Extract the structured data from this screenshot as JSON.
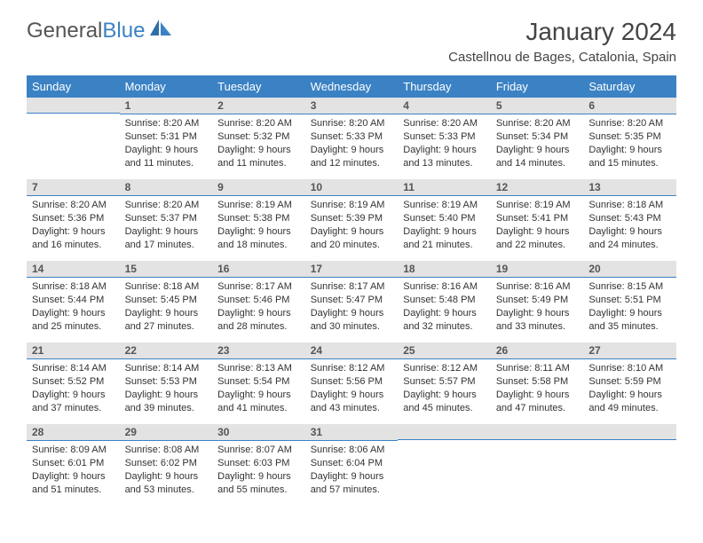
{
  "logo": {
    "part1": "General",
    "part2": "Blue"
  },
  "header": {
    "month_title": "January 2024",
    "location": "Castellnou de Bages, Catalonia, Spain"
  },
  "colors": {
    "header_bg": "#3b82c4",
    "header_text": "#ffffff",
    "daynum_bg": "#e3e3e3",
    "daynum_border": "#3b82c4",
    "page_bg": "#ffffff"
  },
  "weekdays": [
    "Sunday",
    "Monday",
    "Tuesday",
    "Wednesday",
    "Thursday",
    "Friday",
    "Saturday"
  ],
  "weeks": [
    [
      {
        "day": "",
        "lines": []
      },
      {
        "day": "1",
        "lines": [
          "Sunrise: 8:20 AM",
          "Sunset: 5:31 PM",
          "Daylight: 9 hours",
          "and 11 minutes."
        ]
      },
      {
        "day": "2",
        "lines": [
          "Sunrise: 8:20 AM",
          "Sunset: 5:32 PM",
          "Daylight: 9 hours",
          "and 11 minutes."
        ]
      },
      {
        "day": "3",
        "lines": [
          "Sunrise: 8:20 AM",
          "Sunset: 5:33 PM",
          "Daylight: 9 hours",
          "and 12 minutes."
        ]
      },
      {
        "day": "4",
        "lines": [
          "Sunrise: 8:20 AM",
          "Sunset: 5:33 PM",
          "Daylight: 9 hours",
          "and 13 minutes."
        ]
      },
      {
        "day": "5",
        "lines": [
          "Sunrise: 8:20 AM",
          "Sunset: 5:34 PM",
          "Daylight: 9 hours",
          "and 14 minutes."
        ]
      },
      {
        "day": "6",
        "lines": [
          "Sunrise: 8:20 AM",
          "Sunset: 5:35 PM",
          "Daylight: 9 hours",
          "and 15 minutes."
        ]
      }
    ],
    [
      {
        "day": "7",
        "lines": [
          "Sunrise: 8:20 AM",
          "Sunset: 5:36 PM",
          "Daylight: 9 hours",
          "and 16 minutes."
        ]
      },
      {
        "day": "8",
        "lines": [
          "Sunrise: 8:20 AM",
          "Sunset: 5:37 PM",
          "Daylight: 9 hours",
          "and 17 minutes."
        ]
      },
      {
        "day": "9",
        "lines": [
          "Sunrise: 8:19 AM",
          "Sunset: 5:38 PM",
          "Daylight: 9 hours",
          "and 18 minutes."
        ]
      },
      {
        "day": "10",
        "lines": [
          "Sunrise: 8:19 AM",
          "Sunset: 5:39 PM",
          "Daylight: 9 hours",
          "and 20 minutes."
        ]
      },
      {
        "day": "11",
        "lines": [
          "Sunrise: 8:19 AM",
          "Sunset: 5:40 PM",
          "Daylight: 9 hours",
          "and 21 minutes."
        ]
      },
      {
        "day": "12",
        "lines": [
          "Sunrise: 8:19 AM",
          "Sunset: 5:41 PM",
          "Daylight: 9 hours",
          "and 22 minutes."
        ]
      },
      {
        "day": "13",
        "lines": [
          "Sunrise: 8:18 AM",
          "Sunset: 5:43 PM",
          "Daylight: 9 hours",
          "and 24 minutes."
        ]
      }
    ],
    [
      {
        "day": "14",
        "lines": [
          "Sunrise: 8:18 AM",
          "Sunset: 5:44 PM",
          "Daylight: 9 hours",
          "and 25 minutes."
        ]
      },
      {
        "day": "15",
        "lines": [
          "Sunrise: 8:18 AM",
          "Sunset: 5:45 PM",
          "Daylight: 9 hours",
          "and 27 minutes."
        ]
      },
      {
        "day": "16",
        "lines": [
          "Sunrise: 8:17 AM",
          "Sunset: 5:46 PM",
          "Daylight: 9 hours",
          "and 28 minutes."
        ]
      },
      {
        "day": "17",
        "lines": [
          "Sunrise: 8:17 AM",
          "Sunset: 5:47 PM",
          "Daylight: 9 hours",
          "and 30 minutes."
        ]
      },
      {
        "day": "18",
        "lines": [
          "Sunrise: 8:16 AM",
          "Sunset: 5:48 PM",
          "Daylight: 9 hours",
          "and 32 minutes."
        ]
      },
      {
        "day": "19",
        "lines": [
          "Sunrise: 8:16 AM",
          "Sunset: 5:49 PM",
          "Daylight: 9 hours",
          "and 33 minutes."
        ]
      },
      {
        "day": "20",
        "lines": [
          "Sunrise: 8:15 AM",
          "Sunset: 5:51 PM",
          "Daylight: 9 hours",
          "and 35 minutes."
        ]
      }
    ],
    [
      {
        "day": "21",
        "lines": [
          "Sunrise: 8:14 AM",
          "Sunset: 5:52 PM",
          "Daylight: 9 hours",
          "and 37 minutes."
        ]
      },
      {
        "day": "22",
        "lines": [
          "Sunrise: 8:14 AM",
          "Sunset: 5:53 PM",
          "Daylight: 9 hours",
          "and 39 minutes."
        ]
      },
      {
        "day": "23",
        "lines": [
          "Sunrise: 8:13 AM",
          "Sunset: 5:54 PM",
          "Daylight: 9 hours",
          "and 41 minutes."
        ]
      },
      {
        "day": "24",
        "lines": [
          "Sunrise: 8:12 AM",
          "Sunset: 5:56 PM",
          "Daylight: 9 hours",
          "and 43 minutes."
        ]
      },
      {
        "day": "25",
        "lines": [
          "Sunrise: 8:12 AM",
          "Sunset: 5:57 PM",
          "Daylight: 9 hours",
          "and 45 minutes."
        ]
      },
      {
        "day": "26",
        "lines": [
          "Sunrise: 8:11 AM",
          "Sunset: 5:58 PM",
          "Daylight: 9 hours",
          "and 47 minutes."
        ]
      },
      {
        "day": "27",
        "lines": [
          "Sunrise: 8:10 AM",
          "Sunset: 5:59 PM",
          "Daylight: 9 hours",
          "and 49 minutes."
        ]
      }
    ],
    [
      {
        "day": "28",
        "lines": [
          "Sunrise: 8:09 AM",
          "Sunset: 6:01 PM",
          "Daylight: 9 hours",
          "and 51 minutes."
        ]
      },
      {
        "day": "29",
        "lines": [
          "Sunrise: 8:08 AM",
          "Sunset: 6:02 PM",
          "Daylight: 9 hours",
          "and 53 minutes."
        ]
      },
      {
        "day": "30",
        "lines": [
          "Sunrise: 8:07 AM",
          "Sunset: 6:03 PM",
          "Daylight: 9 hours",
          "and 55 minutes."
        ]
      },
      {
        "day": "31",
        "lines": [
          "Sunrise: 8:06 AM",
          "Sunset: 6:04 PM",
          "Daylight: 9 hours",
          "and 57 minutes."
        ]
      },
      {
        "day": "",
        "lines": []
      },
      {
        "day": "",
        "lines": []
      },
      {
        "day": "",
        "lines": []
      }
    ]
  ]
}
